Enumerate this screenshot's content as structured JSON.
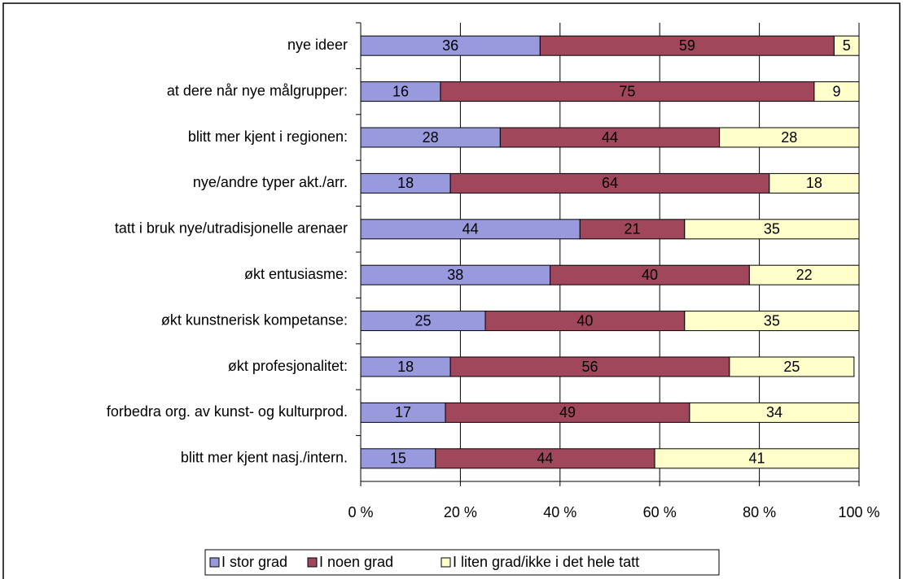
{
  "chart_data": {
    "type": "stacked_bar_horizontal",
    "categories": [
      "nye ideer",
      "at dere når nye målgrupper:",
      "blitt mer kjent i regionen:",
      "nye/andre typer akt./arr.",
      "tatt i bruk nye/utradisjonelle arenaer",
      "økt entusiasme:",
      "økt kunstnerisk kompetanse:",
      "økt profesjonalitet:",
      "forbedra org. av kunst- og kulturprod.",
      "blitt mer kjent nasj./intern."
    ],
    "series": [
      {
        "name": "I stor grad",
        "color": "#9999dd",
        "values": [
          36,
          16,
          28,
          18,
          44,
          38,
          25,
          18,
          17,
          15
        ]
      },
      {
        "name": "I noen grad",
        "color": "#a0475b",
        "values": [
          59,
          75,
          44,
          64,
          21,
          40,
          40,
          56,
          49,
          44
        ]
      },
      {
        "name": "I liten grad/ikke i det hele tatt",
        "color": "#ffffcc",
        "values": [
          5,
          9,
          28,
          18,
          35,
          22,
          35,
          25,
          34,
          41
        ]
      }
    ],
    "xlim": [
      0,
      100
    ],
    "xticks": [
      {
        "value": 0,
        "label": "0 %"
      },
      {
        "value": 20,
        "label": "20 %"
      },
      {
        "value": 40,
        "label": "40 %"
      },
      {
        "value": 60,
        "label": "60 %"
      },
      {
        "value": 80,
        "label": "80 %"
      },
      {
        "value": 100,
        "label": "100 %"
      }
    ],
    "grid": true,
    "legend": "bottom"
  }
}
